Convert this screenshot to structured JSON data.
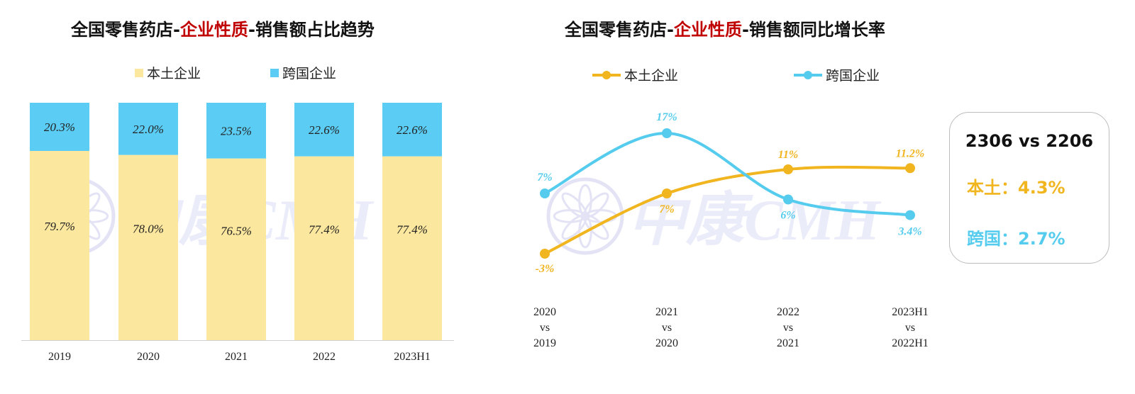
{
  "left_title": {
    "prefix": "全国零售药店-",
    "highlight": "企业性质",
    "suffix": "-销售额占比趋势"
  },
  "right_title": {
    "prefix": "全国零售药店-",
    "highlight": "企业性质",
    "suffix": "-销售额同比增长率"
  },
  "legend": {
    "local": "本土企业",
    "cross": "跨国企业"
  },
  "watermark": "中康CMH",
  "colors": {
    "local_bar": "#fbe79e",
    "cross_bar": "#5bcdf4",
    "local_line": "#f0b51f",
    "cross_line": "#55ccee",
    "highlight": "#c00000"
  },
  "chart_data": [
    {
      "type": "bar",
      "stacked": true,
      "percent": true,
      "categories": [
        "2019",
        "2020",
        "2021",
        "2022",
        "2023H1"
      ],
      "series": [
        {
          "name": "本土企业",
          "values": [
            79.7,
            78.0,
            76.5,
            77.4,
            77.4
          ],
          "labels": [
            "79.7%",
            "78.0%",
            "76.5%",
            "77.4%",
            "77.4%"
          ]
        },
        {
          "name": "跨国企业",
          "values": [
            20.3,
            22.0,
            23.5,
            22.6,
            22.6
          ],
          "labels": [
            "20.3%",
            "22.0%",
            "23.5%",
            "22.6%",
            "22.6%"
          ]
        }
      ],
      "ylim": [
        0,
        100
      ],
      "legend": "top"
    },
    {
      "type": "line",
      "smooth": true,
      "categories": [
        [
          "2020",
          "vs",
          "2019"
        ],
        [
          "2021",
          "vs",
          "2020"
        ],
        [
          "2022",
          "vs",
          "2021"
        ],
        [
          "2023H1",
          "vs",
          "2022H1"
        ]
      ],
      "series": [
        {
          "name": "本土企业",
          "values": [
            -3,
            7,
            11,
            11.2
          ],
          "labels": [
            "-3%",
            "7%",
            "11%",
            "11.2%"
          ]
        },
        {
          "name": "跨国企业",
          "values": [
            7,
            17,
            6,
            3.4
          ],
          "labels": [
            "7%",
            "17%",
            "6%",
            "3.4%"
          ]
        }
      ],
      "legend": "top"
    }
  ],
  "summary_box": {
    "title": "2306 vs 2206",
    "local": "本土：4.3%",
    "cross": "跨国：2.7%"
  }
}
